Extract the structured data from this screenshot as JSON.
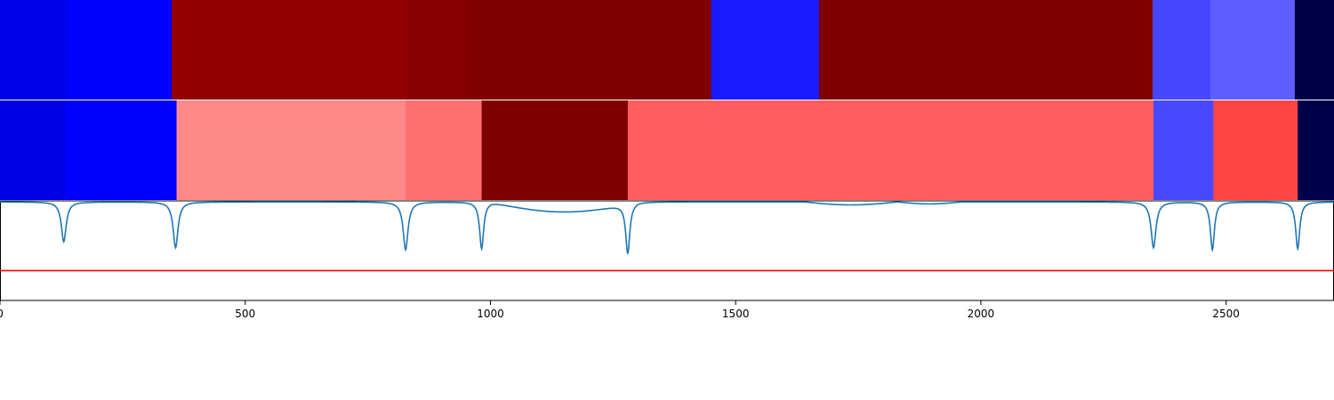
{
  "chart_data": {
    "type": "heatmap",
    "xlim": [
      0,
      2720
    ],
    "x_ticks": [
      0,
      500,
      1000,
      1500,
      2000,
      2500
    ],
    "x_tick_labels": [
      "0",
      "500",
      "1000",
      "1500",
      "2000",
      "2500"
    ],
    "grid": false,
    "rows": [
      {
        "segments": [
          {
            "start": 0,
            "end": 138,
            "color": "#0000e8"
          },
          {
            "start": 138,
            "end": 350,
            "color": "#0000ff"
          },
          {
            "start": 350,
            "end": 830,
            "color": "#940000"
          },
          {
            "start": 830,
            "end": 960,
            "color": "#860000"
          },
          {
            "start": 960,
            "end": 1450,
            "color": "#800000"
          },
          {
            "start": 1450,
            "end": 1670,
            "color": "#1a1aff"
          },
          {
            "start": 1670,
            "end": 2350,
            "color": "#800000"
          },
          {
            "start": 2350,
            "end": 2468,
            "color": "#4747ff"
          },
          {
            "start": 2468,
            "end": 2640,
            "color": "#5e5eff"
          },
          {
            "start": 2640,
            "end": 2720,
            "color": "#000048"
          }
        ]
      },
      {
        "segments": [
          {
            "start": 0,
            "end": 132,
            "color": "#0000e6"
          },
          {
            "start": 132,
            "end": 360,
            "color": "#0000ff"
          },
          {
            "start": 360,
            "end": 827,
            "color": "#ff8888"
          },
          {
            "start": 827,
            "end": 982,
            "color": "#ff7070"
          },
          {
            "start": 982,
            "end": 1280,
            "color": "#7e0000"
          },
          {
            "start": 1280,
            "end": 2352,
            "color": "#ff5e5e"
          },
          {
            "start": 2352,
            "end": 2474,
            "color": "#4848ff"
          },
          {
            "start": 2474,
            "end": 2646,
            "color": "#ff4444"
          },
          {
            "start": 2646,
            "end": 2720,
            "color": "#00004a"
          }
        ]
      }
    ],
    "line": {
      "color": "#1f77b4",
      "ylim": [
        -1,
        0
      ],
      "baseline": -0.01,
      "dips": [
        {
          "x": 130,
          "depth": 0.4,
          "width": 6
        },
        {
          "x": 358,
          "depth": 0.46,
          "width": 6
        },
        {
          "x": 827,
          "depth": 0.48,
          "width": 6
        },
        {
          "x": 982,
          "depth": 0.47,
          "width": 5
        },
        {
          "x": 1280,
          "depth": 0.5,
          "width": 5
        },
        {
          "x": 2352,
          "depth": 0.46,
          "width": 6
        },
        {
          "x": 2472,
          "depth": 0.48,
          "width": 5
        },
        {
          "x": 2646,
          "depth": 0.47,
          "width": 5
        }
      ],
      "humps": [
        {
          "start": 1000,
          "end": 1300,
          "level": 0.1
        },
        {
          "start": 1640,
          "end": 1830,
          "level": 0.03
        },
        {
          "start": 1830,
          "end": 1960,
          "level": 0.02
        }
      ]
    },
    "threshold": {
      "value": -0.7,
      "color": "#ff0000"
    }
  }
}
